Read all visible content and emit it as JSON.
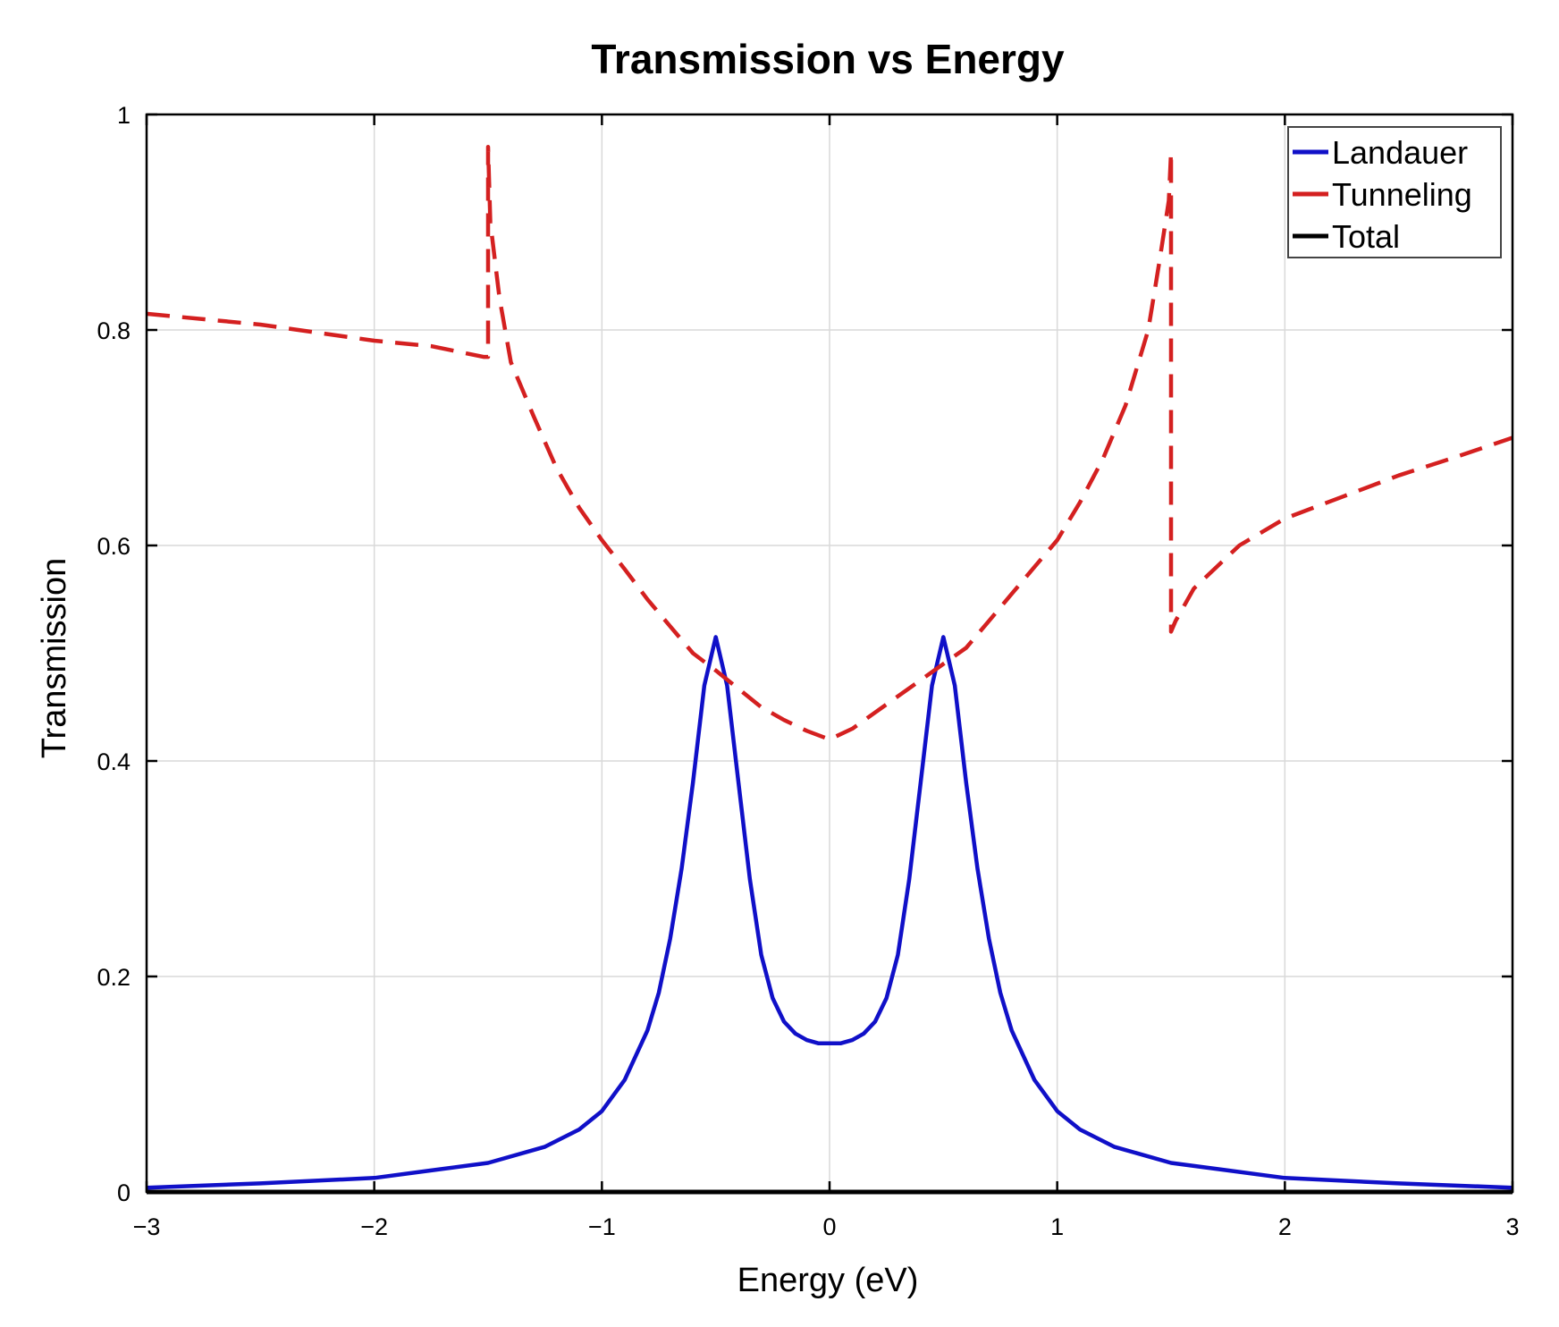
{
  "colors": {
    "landauer": "#1010c8",
    "tunneling": "#d42020",
    "total": "#000000",
    "grid": "#d9d9d9",
    "axes": "#000000"
  },
  "chart_data": {
    "type": "line",
    "title": "Transmission vs Energy",
    "xlabel": "Energy (eV)",
    "ylabel": "Transmission",
    "xlim": [
      -3,
      3
    ],
    "ylim": [
      0,
      1
    ],
    "grid": true,
    "legend_position": "top-right",
    "x_ticks": [
      -3,
      -2,
      -1,
      0,
      1,
      2,
      3
    ],
    "x_tick_labels": [
      "−3",
      "−2",
      "−1",
      "0",
      "1",
      "2",
      "3"
    ],
    "y_ticks": [
      0,
      0.2,
      0.4,
      0.6,
      0.8,
      1
    ],
    "y_tick_labels": [
      "0",
      "0.2",
      "0.4",
      "0.6",
      "0.8",
      "1"
    ],
    "series": [
      {
        "name": "Landauer",
        "style": "solid",
        "x": [
          -3,
          -2.5,
          -2,
          -1.75,
          -1.5,
          -1.25,
          -1.1,
          -1,
          -0.9,
          -0.8,
          -0.75,
          -0.7,
          -0.65,
          -0.6,
          -0.55,
          -0.5,
          -0.45,
          -0.4,
          -0.35,
          -0.3,
          -0.25,
          -0.2,
          -0.15,
          -0.1,
          -0.05,
          0,
          0.05,
          0.1,
          0.15,
          0.2,
          0.25,
          0.3,
          0.35,
          0.4,
          0.45,
          0.5,
          0.55,
          0.6,
          0.65,
          0.7,
          0.75,
          0.8,
          0.9,
          1,
          1.1,
          1.25,
          1.5,
          1.75,
          2,
          2.5,
          3
        ],
        "y": [
          0.004,
          0.008,
          0.013,
          0.02,
          0.027,
          0.042,
          0.058,
          0.075,
          0.104,
          0.15,
          0.185,
          0.235,
          0.3,
          0.38,
          0.47,
          0.515,
          0.47,
          0.38,
          0.29,
          0.22,
          0.18,
          0.158,
          0.147,
          0.141,
          0.138,
          0.138,
          0.138,
          0.141,
          0.147,
          0.158,
          0.18,
          0.22,
          0.29,
          0.38,
          0.47,
          0.515,
          0.47,
          0.38,
          0.3,
          0.235,
          0.185,
          0.15,
          0.104,
          0.075,
          0.058,
          0.042,
          0.027,
          0.02,
          0.013,
          0.008,
          0.004
        ]
      },
      {
        "name": "Tunneling",
        "style": "dashed",
        "x": [
          -3,
          -2.5,
          -2,
          -1.75,
          -1.52,
          -1.5,
          -1.5,
          -1.49,
          -1.45,
          -1.4,
          -1.3,
          -1.2,
          -1.1,
          -1,
          -0.9,
          -0.8,
          -0.7,
          -0.6,
          -0.5,
          -0.4,
          -0.3,
          -0.2,
          -0.1,
          0,
          0.1,
          0.2,
          0.3,
          0.4,
          0.5,
          0.6,
          0.7,
          0.8,
          0.9,
          1,
          1.1,
          1.2,
          1.3,
          1.4,
          1.45,
          1.49,
          1.5,
          1.5,
          1.52,
          1.6,
          1.7,
          1.8,
          2,
          2.25,
          2.5,
          2.75,
          3
        ],
        "y": [
          0.815,
          0.805,
          0.79,
          0.785,
          0.775,
          0.775,
          0.97,
          0.9,
          0.83,
          0.77,
          0.72,
          0.672,
          0.635,
          0.605,
          0.578,
          0.55,
          0.525,
          0.5,
          0.484,
          0.467,
          0.45,
          0.438,
          0.428,
          0.42,
          0.43,
          0.445,
          0.46,
          0.475,
          0.49,
          0.505,
          0.53,
          0.555,
          0.58,
          0.605,
          0.64,
          0.68,
          0.73,
          0.8,
          0.865,
          0.92,
          0.965,
          0.52,
          0.53,
          0.56,
          0.58,
          0.6,
          0.625,
          0.645,
          0.665,
          0.682,
          0.7
        ]
      },
      {
        "name": "Total",
        "style": "solid",
        "x": [
          -3,
          3
        ],
        "y": [
          0,
          0
        ]
      }
    ]
  }
}
